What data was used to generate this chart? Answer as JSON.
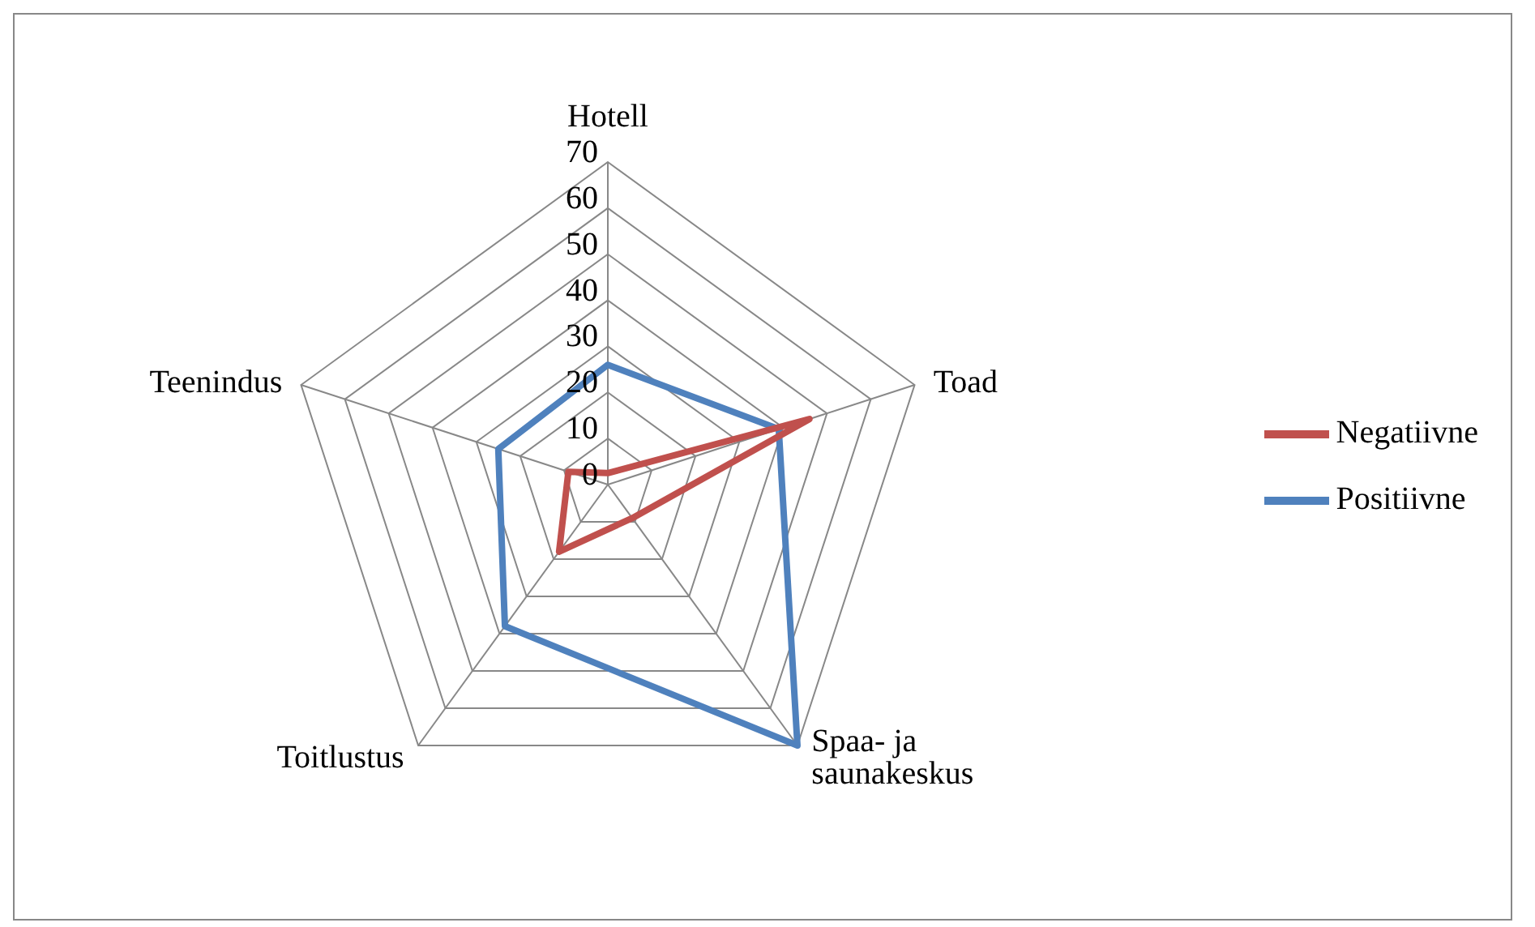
{
  "chart_data": {
    "type": "radar",
    "categories": [
      "Hotell",
      "Toad",
      "Spaa- ja saunakeskus",
      "Toitlustus",
      "Teenindus"
    ],
    "series": [
      {
        "name": "Positiivne",
        "color": "#4f81bd",
        "values": [
          26,
          39,
          70,
          38,
          25
        ]
      },
      {
        "name": "Negatiivne",
        "color": "#c0504d",
        "values": [
          2.5,
          46,
          9,
          18,
          9
        ]
      }
    ],
    "ylim": [
      0,
      70
    ],
    "yticks": [
      0,
      10,
      20,
      30,
      40,
      50,
      60,
      70
    ],
    "grid": true,
    "legend": "right",
    "marker": "none"
  }
}
